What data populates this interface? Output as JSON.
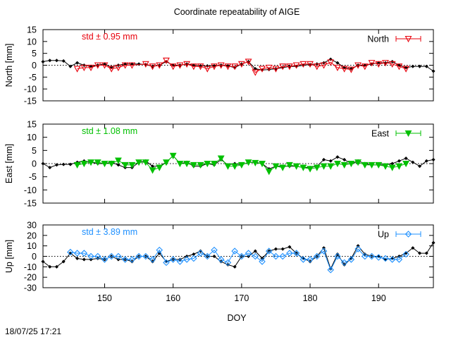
{
  "title": "Coordinate repeatability of AIGE",
  "footer_timestamp": "18/07/25 17:21",
  "chart_data": [
    {
      "type": "line",
      "id": "north",
      "ylabel": "North [mm]",
      "ylim": [
        -15,
        15
      ],
      "yticks": [
        -15,
        -10,
        -5,
        0,
        5,
        10,
        15
      ],
      "xlim": [
        141,
        198
      ],
      "xticks": [
        150,
        160,
        170,
        180,
        190
      ],
      "annotation": "std ± 0.95 mm",
      "annotation_color": "#e8000b",
      "legend": "North",
      "legend_position": "top-right",
      "series": [
        {
          "role": "reference",
          "color": "#000000",
          "x": [
            141,
            142,
            143,
            144,
            145,
            146,
            147,
            148,
            149,
            150,
            151,
            152,
            153,
            154,
            155,
            156,
            157,
            158,
            159,
            160,
            161,
            162,
            163,
            164,
            165,
            166,
            167,
            168,
            169,
            170,
            171,
            172,
            173,
            174,
            175,
            176,
            177,
            178,
            179,
            180,
            181,
            182,
            183,
            184,
            185,
            186,
            187,
            188,
            189,
            190,
            191,
            192,
            193,
            194,
            195,
            196,
            197,
            198
          ],
          "y": [
            1.5,
            2,
            2,
            1.8,
            -0.5,
            1,
            0,
            -0.5,
            0,
            0.5,
            -0.8,
            0,
            0.5,
            0.5,
            0.5,
            0.3,
            -0.5,
            0,
            1.5,
            0,
            0,
            0.5,
            0,
            -0.3,
            -0.3,
            -0.3,
            0,
            -0.3,
            -1,
            0.5,
            1.5,
            -1.5,
            -2,
            -1.8,
            -1.5,
            -1,
            -0.5,
            -0.5,
            0,
            0.3,
            0.5,
            1,
            2.5,
            1,
            -1,
            -1.5,
            0,
            0,
            0.5,
            1,
            1,
            1.5,
            0,
            -1,
            -0.5,
            -0.5,
            -0.5,
            -2.5
          ]
        },
        {
          "role": "station",
          "color": "#e8000b",
          "marker": "triangle-down-open",
          "x": [
            146,
            147,
            148,
            149,
            150,
            151,
            152,
            153,
            154,
            156,
            157,
            158,
            159,
            160,
            161,
            162,
            163,
            164,
            165,
            166,
            167,
            168,
            169,
            170,
            171,
            172,
            173,
            174,
            175,
            176,
            177,
            178,
            179,
            180,
            181,
            182,
            183,
            184,
            185,
            186,
            187,
            188,
            189,
            190,
            191,
            192,
            193,
            194
          ],
          "y": [
            -1.5,
            -1,
            -1,
            0,
            0,
            -1.5,
            -1,
            0,
            0,
            0.5,
            -0.5,
            0,
            2,
            -0.5,
            0,
            0.5,
            -0.5,
            -0.5,
            -1.5,
            -0.5,
            0,
            -0.5,
            -0.5,
            0.5,
            1.5,
            -3,
            -1.5,
            -1,
            -1.5,
            -0.5,
            -0.5,
            0,
            0.5,
            0.5,
            -0.5,
            0,
            1.2,
            -1,
            -1.5,
            -1.8,
            0,
            -0.5,
            1,
            0.5,
            1,
            0.5,
            -0.5,
            -1.5
          ]
        }
      ]
    },
    {
      "type": "line",
      "id": "east",
      "ylabel": "East [mm]",
      "ylim": [
        -15,
        15
      ],
      "yticks": [
        -15,
        -10,
        -5,
        0,
        5,
        10,
        15
      ],
      "xlim": [
        141,
        198
      ],
      "xticks": [
        150,
        160,
        170,
        180,
        190
      ],
      "annotation": "std ± 1.08 mm",
      "annotation_color": "#00c000",
      "legend": "East",
      "legend_position": "top-right",
      "series": [
        {
          "role": "reference",
          "color": "#000000",
          "x": [
            141,
            142,
            143,
            144,
            145,
            146,
            147,
            148,
            149,
            150,
            151,
            152,
            153,
            154,
            155,
            156,
            157,
            158,
            159,
            160,
            161,
            162,
            163,
            164,
            165,
            166,
            167,
            168,
            169,
            170,
            171,
            172,
            173,
            174,
            175,
            176,
            177,
            178,
            179,
            180,
            181,
            182,
            183,
            184,
            185,
            186,
            187,
            188,
            189,
            190,
            191,
            192,
            193,
            194,
            195,
            196,
            197,
            198
          ],
          "y": [
            0,
            -1.5,
            -0.5,
            -0.3,
            -0.3,
            0.5,
            1,
            0.5,
            0,
            0,
            0.5,
            -0.5,
            -1.5,
            -1.5,
            0.5,
            1,
            -1,
            -1,
            0.5,
            3,
            0,
            0.5,
            -1,
            -1,
            0,
            -0.5,
            1.5,
            -0.5,
            0,
            -0.5,
            0.5,
            0.5,
            0,
            -2,
            -1,
            -1,
            -1,
            -1,
            -1.5,
            -1.5,
            -1,
            1.5,
            1,
            2.5,
            1.5,
            0,
            1,
            0,
            -0.5,
            -0.5,
            -0.5,
            0,
            1,
            2,
            0.5,
            -1,
            1,
            1.5
          ]
        },
        {
          "role": "station",
          "color": "#00c000",
          "marker": "triangle-down-filled",
          "x": [
            146,
            147,
            148,
            149,
            150,
            151,
            152,
            153,
            154,
            155,
            156,
            157,
            158,
            159,
            160,
            161,
            162,
            163,
            164,
            165,
            166,
            167,
            168,
            169,
            170,
            171,
            172,
            173,
            174,
            175,
            176,
            177,
            178,
            179,
            180,
            181,
            182,
            183,
            184,
            185,
            186,
            187,
            188,
            189,
            190,
            191,
            192,
            193,
            194
          ],
          "y": [
            -0.5,
            0,
            0.5,
            0.5,
            0,
            0,
            1.2,
            -0.5,
            -0.5,
            0.5,
            0.5,
            -2.5,
            -1.5,
            0.5,
            3,
            0,
            0,
            -0.5,
            -0.5,
            0,
            0,
            2,
            -1,
            -1,
            -0.5,
            0.5,
            0.3,
            0,
            -3,
            -1,
            -1.5,
            -0.5,
            -1,
            -1.5,
            -2,
            -1.5,
            -1,
            -1,
            0,
            -0.5,
            0,
            0.5,
            -0.5,
            -0.5,
            -0.5,
            -1,
            -1.5,
            -1,
            0
          ]
        }
      ]
    },
    {
      "type": "line",
      "id": "up",
      "ylabel": "Up [mm]",
      "ylim": [
        -30,
        30
      ],
      "yticks": [
        -30,
        -20,
        -10,
        0,
        10,
        20,
        30
      ],
      "xlim": [
        141,
        198
      ],
      "xticks": [
        150,
        160,
        170,
        180,
        190
      ],
      "xlabel": "DOY",
      "annotation": "std ± 3.89 mm",
      "annotation_color": "#1e90ff",
      "legend": "Up",
      "legend_position": "top-right",
      "series": [
        {
          "role": "reference",
          "color": "#000000",
          "x": [
            141,
            142,
            143,
            144,
            145,
            146,
            147,
            148,
            149,
            150,
            151,
            152,
            153,
            154,
            155,
            156,
            157,
            158,
            159,
            160,
            161,
            162,
            163,
            164,
            165,
            166,
            167,
            168,
            169,
            170,
            171,
            172,
            173,
            174,
            175,
            176,
            177,
            178,
            179,
            180,
            181,
            182,
            183,
            184,
            185,
            186,
            187,
            188,
            189,
            190,
            191,
            192,
            193,
            194,
            195,
            196,
            197,
            198
          ],
          "y": [
            -5,
            -10,
            -10,
            -5,
            3,
            -2,
            -3,
            -3,
            -2,
            -3,
            0,
            -3,
            -3,
            -5,
            0,
            0,
            -5,
            3,
            -5,
            -3,
            -3,
            0,
            2,
            5,
            0,
            0,
            -5,
            -8,
            -10,
            0,
            0,
            5,
            -2,
            5,
            7,
            7,
            9,
            3,
            -2,
            -5,
            0,
            8,
            -12,
            2,
            -8,
            -2,
            10,
            2,
            0,
            0,
            -3,
            -2,
            0,
            3,
            8,
            3,
            3,
            13
          ]
        },
        {
          "role": "station",
          "color": "#1e90ff",
          "marker": "diamond-open",
          "x": [
            145,
            146,
            147,
            148,
            149,
            150,
            151,
            152,
            153,
            154,
            155,
            156,
            157,
            158,
            159,
            160,
            161,
            162,
            163,
            164,
            165,
            166,
            167,
            168,
            169,
            170,
            171,
            172,
            173,
            174,
            175,
            176,
            177,
            178,
            179,
            180,
            181,
            182,
            183,
            184,
            185,
            186,
            187,
            188,
            189,
            190,
            191,
            192,
            193,
            194
          ],
          "y": [
            4,
            3,
            3,
            0,
            0,
            -3,
            0,
            0,
            -3,
            -3,
            0,
            0,
            -3,
            6,
            -6,
            -3,
            -5,
            -3,
            -2,
            3,
            0,
            6,
            -3,
            -6,
            5,
            0,
            3,
            0,
            -5,
            5,
            0,
            0,
            3,
            3,
            -3,
            -3,
            0,
            5,
            -13,
            0,
            -6,
            -3,
            7,
            0,
            0,
            -1,
            -2,
            -3,
            -3,
            2
          ]
        }
      ]
    }
  ]
}
